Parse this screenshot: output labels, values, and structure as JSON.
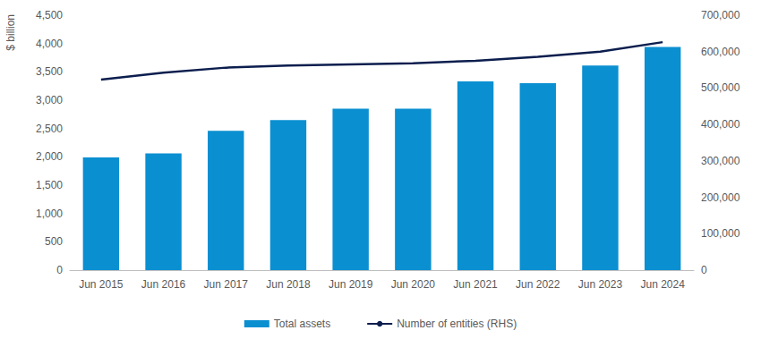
{
  "chart_data": {
    "type": "bar",
    "ylabel": "$ billion",
    "categories": [
      "Jun 2015",
      "Jun 2016",
      "Jun 2017",
      "Jun 2018",
      "Jun 2019",
      "Jun 2020",
      "Jun 2021",
      "Jun 2022",
      "Jun 2023",
      "Jun 2024"
    ],
    "series": [
      {
        "name": "Total assets",
        "type": "bar",
        "color": "#0a8fd1",
        "values": [
          1990,
          2060,
          2460,
          2650,
          2850,
          2850,
          3330,
          3300,
          3610,
          3940
        ]
      },
      {
        "name": "Number of entities (RHS)",
        "type": "line",
        "axis": "y2",
        "color": "#0c1e4e",
        "values": [
          523000,
          542000,
          556000,
          562000,
          565000,
          568000,
          575000,
          586000,
          600000,
          626000
        ]
      }
    ],
    "ylim": [
      0,
      4500
    ],
    "yticks": [
      0,
      500,
      {
        "value": 1000,
        "label": "1,000"
      },
      {
        "value": 1500,
        "label": "1,500"
      },
      {
        "value": 2000,
        "label": "2,000"
      },
      {
        "value": 2500,
        "label": "2,500"
      },
      {
        "value": 3000,
        "label": "3,000"
      },
      {
        "value": 3500,
        "label": "3,500"
      },
      {
        "value": 4000,
        "label": "4,000"
      },
      {
        "value": 4500,
        "label": "4,500"
      }
    ],
    "y2lim": [
      0,
      700000
    ],
    "y2ticks": [
      0,
      {
        "value": 100000,
        "label": "100,000"
      },
      {
        "value": 200000,
        "label": "200,000"
      },
      {
        "value": 300000,
        "label": "300,000"
      },
      {
        "value": 400000,
        "label": "400,000"
      },
      {
        "value": 500000,
        "label": "500,000"
      },
      {
        "value": 600000,
        "label": "600,000"
      },
      {
        "value": 700000,
        "label": "700,000"
      }
    ],
    "grid": false,
    "legend": "bottom"
  }
}
